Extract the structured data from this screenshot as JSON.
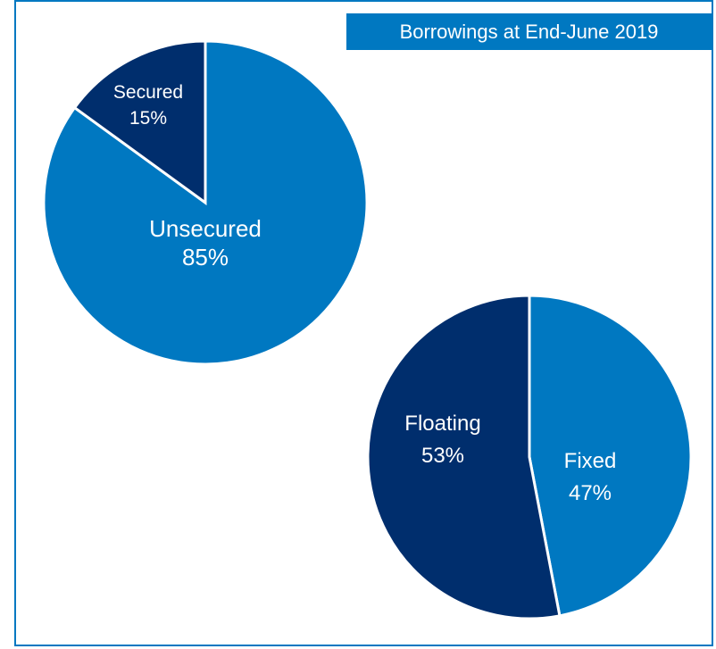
{
  "title": "Borrowings at End-June 2019",
  "colors": {
    "light": "#0078c1",
    "dark": "#002e6d",
    "border": "#0078c1"
  },
  "chart_data": [
    {
      "type": "pie",
      "slices": [
        {
          "label": "Unsecured",
          "value": 85,
          "value_label": "85%",
          "color": "#0078c1"
        },
        {
          "label": "Secured",
          "value": 15,
          "value_label": "15%",
          "color": "#002e6d"
        }
      ]
    },
    {
      "type": "pie",
      "slices": [
        {
          "label": "Fixed",
          "value": 47,
          "value_label": "47%",
          "color": "#0078c1"
        },
        {
          "label": "Floating",
          "value": 53,
          "value_label": "53%",
          "color": "#002e6d"
        }
      ]
    }
  ]
}
